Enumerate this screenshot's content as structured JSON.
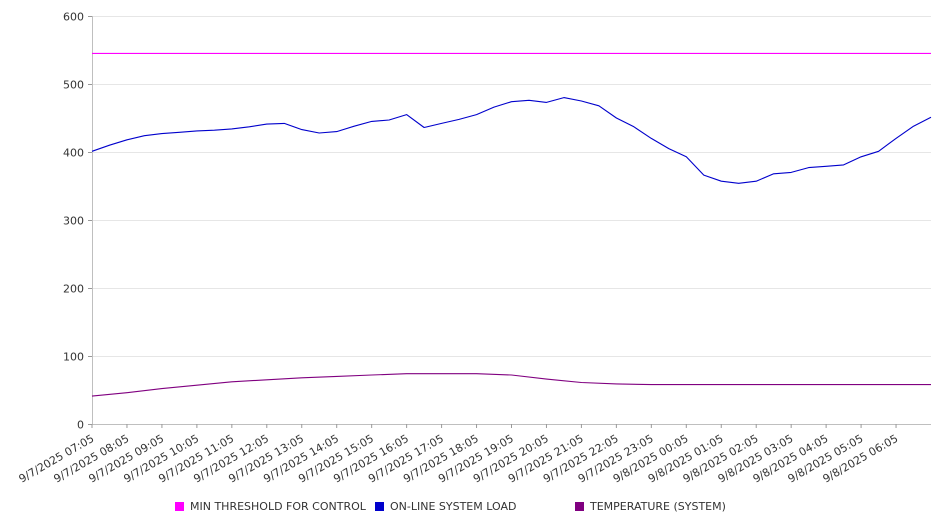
{
  "chart_data": {
    "type": "line",
    "ylim": [
      0,
      600
    ],
    "yticks": [
      0,
      100,
      200,
      300,
      400,
      500,
      600
    ],
    "xlim": [
      "9/7/2025 07:05",
      "9/8/2025 07:05"
    ],
    "xticks": [
      "9/7/2025 07:05",
      "9/7/2025 08:05",
      "9/7/2025 09:05",
      "9/7/2025 10:05",
      "9/7/2025 11:05",
      "9/7/2025 12:05",
      "9/7/2025 13:05",
      "9/7/2025 14:05",
      "9/7/2025 15:05",
      "9/7/2025 16:05",
      "9/7/2025 17:05",
      "9/7/2025 18:05",
      "9/7/2025 19:05",
      "9/7/2025 20:05",
      "9/7/2025 21:05",
      "9/7/2025 22:05",
      "9/7/2025 23:05",
      "9/8/2025 00:05",
      "9/8/2025 01:05",
      "9/8/2025 02:05",
      "9/8/2025 03:05",
      "9/8/2025 04:05",
      "9/8/2025 05:05",
      "9/8/2025 06:05"
    ],
    "grid": "horizontal",
    "legend_position": "bottom",
    "series": [
      {
        "name": "MIN THRESHOLD FOR CONTROL",
        "color": "#ff00ff",
        "x": [
          "9/7/2025 07:05",
          "9/8/2025 07:05"
        ],
        "values": [
          545,
          545
        ]
      },
      {
        "name": "ON-LINE SYSTEM LOAD",
        "color": "#0000cc",
        "x": [
          "9/7/2025 07:05",
          "9/7/2025 07:35",
          "9/7/2025 08:05",
          "9/7/2025 08:35",
          "9/7/2025 09:05",
          "9/7/2025 09:35",
          "9/7/2025 10:05",
          "9/7/2025 10:35",
          "9/7/2025 11:05",
          "9/7/2025 11:35",
          "9/7/2025 12:05",
          "9/7/2025 12:35",
          "9/7/2025 13:05",
          "9/7/2025 13:35",
          "9/7/2025 14:05",
          "9/7/2025 14:35",
          "9/7/2025 15:05",
          "9/7/2025 15:35",
          "9/7/2025 16:05",
          "9/7/2025 16:35",
          "9/7/2025 17:05",
          "9/7/2025 17:35",
          "9/7/2025 18:05",
          "9/7/2025 18:35",
          "9/7/2025 19:05",
          "9/7/2025 19:35",
          "9/7/2025 20:05",
          "9/7/2025 20:35",
          "9/7/2025 21:05",
          "9/7/2025 21:35",
          "9/7/2025 22:05",
          "9/7/2025 22:35",
          "9/7/2025 23:05",
          "9/7/2025 23:35",
          "9/8/2025 00:05",
          "9/8/2025 00:35",
          "9/8/2025 01:05",
          "9/8/2025 01:35",
          "9/8/2025 02:05",
          "9/8/2025 02:35",
          "9/8/2025 03:05",
          "9/8/2025 03:35",
          "9/8/2025 04:05",
          "9/8/2025 04:35",
          "9/8/2025 05:05",
          "9/8/2025 05:35",
          "9/8/2025 06:05",
          "9/8/2025 06:35",
          "9/8/2025 07:05"
        ],
        "values": [
          401,
          410,
          418,
          424,
          427,
          429,
          431,
          432,
          434,
          437,
          441,
          442,
          433,
          428,
          430,
          438,
          445,
          447,
          455,
          436,
          442,
          448,
          455,
          466,
          474,
          476,
          473,
          480,
          475,
          468,
          450,
          437,
          420,
          405,
          393,
          366,
          357,
          354,
          357,
          368,
          370,
          377,
          379,
          381,
          393,
          401,
          420,
          438,
          451
        ]
      },
      {
        "name": "TEMPERATURE (SYSTEM)",
        "color": "#800080",
        "x": [
          "9/7/2025 07:05",
          "9/7/2025 08:05",
          "9/7/2025 09:05",
          "9/7/2025 10:05",
          "9/7/2025 11:05",
          "9/7/2025 12:05",
          "9/7/2025 13:05",
          "9/7/2025 14:05",
          "9/7/2025 15:05",
          "9/7/2025 16:05",
          "9/7/2025 17:05",
          "9/7/2025 18:05",
          "9/7/2025 19:05",
          "9/7/2025 20:05",
          "9/7/2025 21:05",
          "9/7/2025 22:05",
          "9/7/2025 23:05",
          "9/8/2025 00:05",
          "9/8/2025 01:05",
          "9/8/2025 02:05",
          "9/8/2025 03:05",
          "9/8/2025 04:05",
          "9/8/2025 05:05",
          "9/8/2025 06:05",
          "9/8/2025 07:05"
        ],
        "values": [
          41,
          46,
          52,
          57,
          62,
          65,
          68,
          70,
          72,
          74,
          74,
          74,
          72,
          66,
          61,
          59,
          58,
          58,
          58,
          58,
          58,
          58,
          58,
          58,
          58
        ]
      }
    ]
  }
}
